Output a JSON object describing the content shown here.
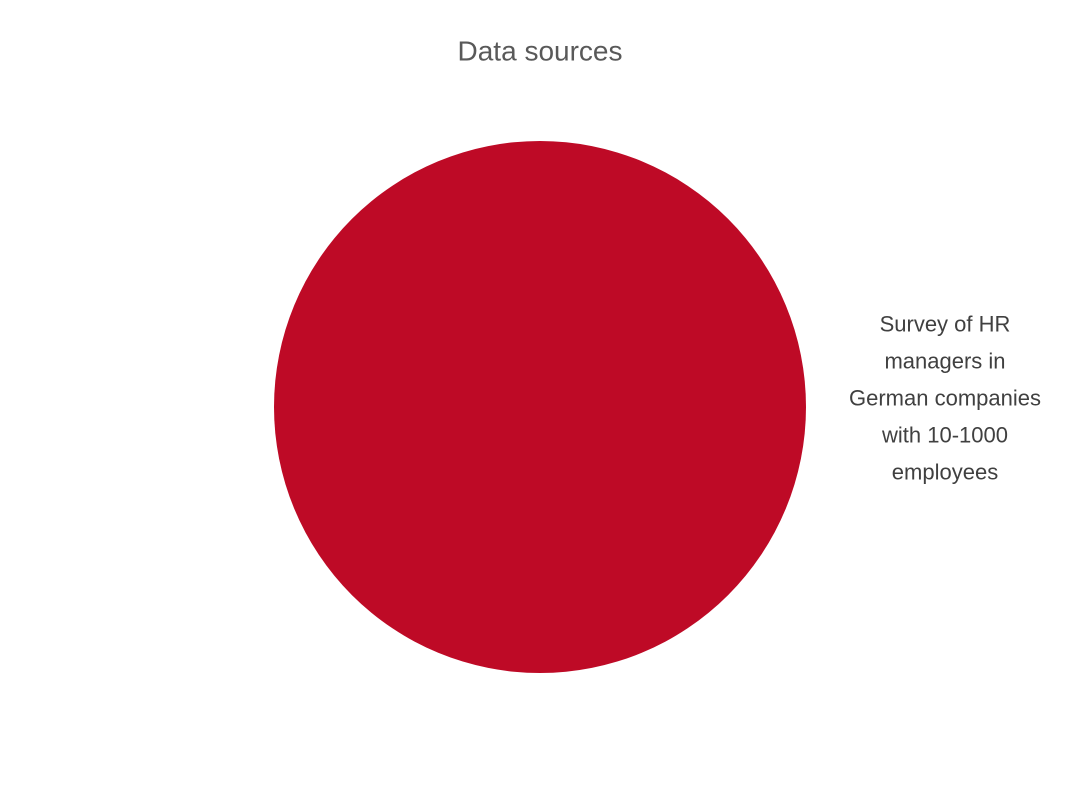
{
  "chart_data": {
    "type": "pie",
    "title": "Data sources",
    "categories": [
      "Survey of HR managers in German companies with 10-1000 employees"
    ],
    "values": [
      100
    ],
    "colors": [
      "#be0a26"
    ]
  }
}
